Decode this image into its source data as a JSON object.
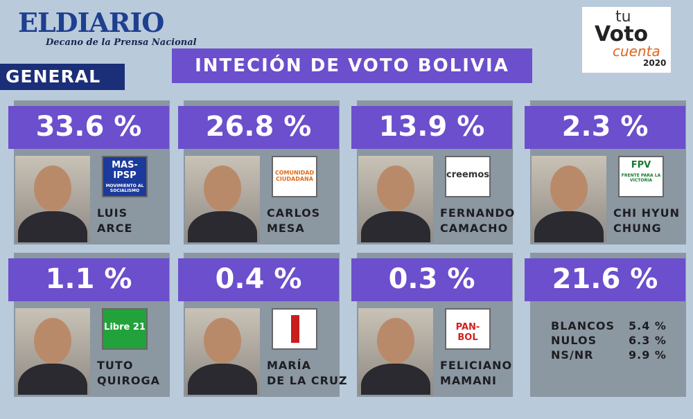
{
  "header": {
    "logo": "ELDIARIO",
    "tagline": "Decano de la Prensa Nacional",
    "section": "GENERAL",
    "title": "INTECIÓN DE VOTO BOLIVIA",
    "badge": {
      "tu": "tu",
      "voto": "Voto",
      "cuenta": "cuenta",
      "year": "2020"
    }
  },
  "candidates": [
    {
      "percent": "33.6 %",
      "name": [
        "LUIS",
        "ARCE"
      ],
      "party": "MAS-IPSP",
      "party_sub": "MOVIMIENTO AL SOCIALISMO",
      "logo_style": "mas"
    },
    {
      "percent": "26.8 %",
      "name": [
        "CARLOS",
        "MESA"
      ],
      "party": "COMUNIDAD CIUDADANA",
      "logo_style": "cc"
    },
    {
      "percent": "13.9 %",
      "name": [
        "FERNANDO",
        "CAMACHO"
      ],
      "party": "creemos",
      "logo_style": "creemos"
    },
    {
      "percent": "2.3 %",
      "name": [
        "CHI HYUN",
        "CHUNG"
      ],
      "party": "FPV",
      "party_sub": "FRENTE PARA LA VICTORIA",
      "logo_style": "fpv"
    },
    {
      "percent": "1.1 %",
      "name": [
        "TUTO",
        "QUIROGA"
      ],
      "party": "Libre 21",
      "logo_style": "libre"
    },
    {
      "percent": "0.4 %",
      "name": [
        "MARÍA",
        "DE LA CRUZ"
      ],
      "logo_style": "arrow"
    },
    {
      "percent": "0.3 %",
      "name": [
        "FELICIANO",
        "MAMANI"
      ],
      "party": "PAN-BOL",
      "logo_style": "panbol"
    }
  ],
  "others": {
    "percent": "21.6 %",
    "rows": [
      {
        "label": "BLANCOS",
        "value": "5.4 %"
      },
      {
        "label": "NULOS",
        "value": "6.3 %"
      },
      {
        "label": "NS/NR",
        "value": "9.9 %"
      }
    ]
  }
}
